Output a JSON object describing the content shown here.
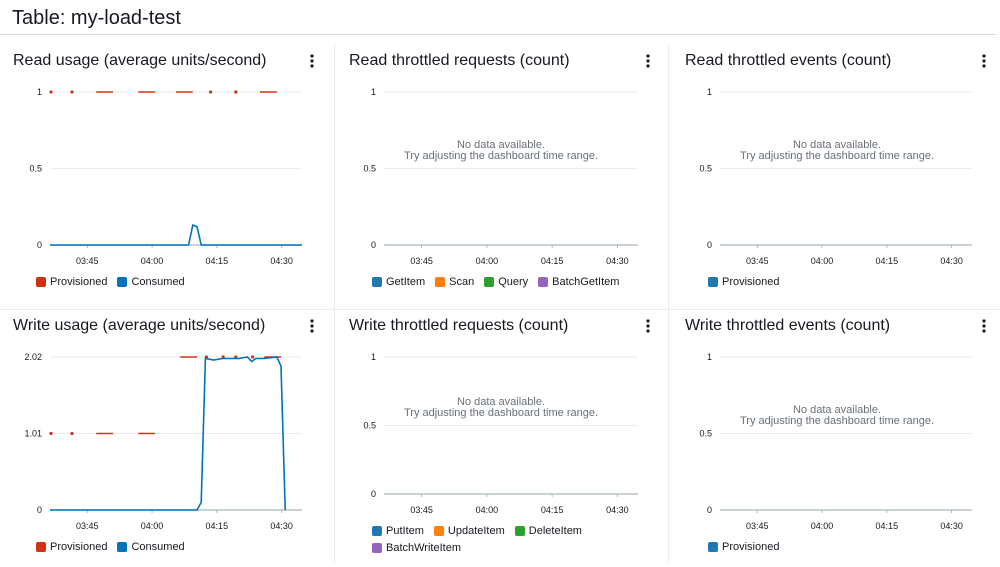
{
  "page": {
    "title": "Table: my-load-test"
  },
  "nodata": {
    "line1": "No data available.",
    "line2": "Try adjusting the dashboard time range."
  },
  "colors": {
    "provisioned": "#d13212",
    "consumed": "#0073bb",
    "getitem": "#1f77b4",
    "scan": "#ff7f0e",
    "query": "#2ca02c",
    "batch": "#9467bd"
  },
  "panels": [
    {
      "title": "Read usage (average units/second)",
      "menu_icon": "more-vertical-icon"
    },
    {
      "title": "Read throttled requests (count)",
      "menu_icon": "more-vertical-icon"
    },
    {
      "title": "Read throttled events (count)",
      "menu_icon": "more-vertical-icon"
    },
    {
      "title": "Write usage (average units/second)",
      "menu_icon": "more-vertical-icon"
    },
    {
      "title": "Write throttled requests (count)",
      "menu_icon": "more-vertical-icon"
    },
    {
      "title": "Write throttled events (count)",
      "menu_icon": "more-vertical-icon"
    }
  ],
  "legends": [
    [
      {
        "label": "Provisioned",
        "color": "#d13212"
      },
      {
        "label": "Consumed",
        "color": "#0073bb"
      }
    ],
    [
      {
        "label": "GetItem",
        "color": "#1f77b4"
      },
      {
        "label": "Scan",
        "color": "#ff7f0e"
      },
      {
        "label": "Query",
        "color": "#2ca02c"
      },
      {
        "label": "BatchGetItem",
        "color": "#9467bd"
      }
    ],
    [
      {
        "label": "Provisioned",
        "color": "#1f77b4"
      }
    ],
    [
      {
        "label": "Provisioned",
        "color": "#d13212"
      },
      {
        "label": "Consumed",
        "color": "#0073bb"
      }
    ],
    [
      {
        "label": "PutItem",
        "color": "#1f77b4"
      },
      {
        "label": "UpdateItem",
        "color": "#ff7f0e"
      },
      {
        "label": "DeleteItem",
        "color": "#2ca02c"
      },
      {
        "label": "BatchWriteItem",
        "color": "#9467bd"
      }
    ],
    [
      {
        "label": "Provisioned",
        "color": "#1f77b4"
      }
    ]
  ],
  "chart_data": [
    {
      "type": "line",
      "title": "Read usage (average units/second)",
      "x_ticks": [
        "03:45",
        "04:00",
        "04:15",
        "04:30"
      ],
      "y_ticks": [
        "0",
        "0.5",
        "1"
      ],
      "ylim": [
        0,
        1
      ],
      "xlim_minutes": [
        33,
        93
      ],
      "series": [
        {
          "name": "Provisioned",
          "style": "dashed",
          "segments": [
            [
              [
                33,
                1
              ],
              [
                34,
                1
              ]
            ],
            [
              [
                38,
                1
              ],
              [
                39,
                1
              ]
            ],
            [
              [
                44,
                1
              ],
              [
                48,
                1
              ]
            ],
            [
              [
                54,
                1
              ],
              [
                58,
                1
              ]
            ],
            [
              [
                63,
                1
              ],
              [
                67,
                1
              ]
            ],
            [
              [
                71,
                1
              ],
              [
                72,
                1
              ]
            ],
            [
              [
                77,
                1
              ],
              [
                78,
                1
              ]
            ],
            [
              [
                83,
                1
              ],
              [
                87,
                1
              ]
            ]
          ]
        },
        {
          "name": "Consumed",
          "style": "solid",
          "points": [
            [
              33,
              0
            ],
            [
              66,
              0
            ],
            [
              67,
              0.13
            ],
            [
              68,
              0.12
            ],
            [
              69,
              0
            ],
            [
              93,
              0
            ]
          ]
        }
      ]
    },
    {
      "type": "line",
      "title": "Read throttled requests (count)",
      "x_ticks": [
        "03:45",
        "04:00",
        "04:15",
        "04:30"
      ],
      "y_ticks": [
        "0",
        "0.5",
        "1"
      ],
      "ylim": [
        0,
        1
      ],
      "series": [],
      "empty": true
    },
    {
      "type": "line",
      "title": "Read throttled events (count)",
      "x_ticks": [
        "03:45",
        "04:00",
        "04:15",
        "04:30"
      ],
      "y_ticks": [
        "0",
        "0.5",
        "1"
      ],
      "ylim": [
        0,
        1
      ],
      "series": [],
      "empty": true
    },
    {
      "type": "line",
      "title": "Write usage (average units/second)",
      "x_ticks": [
        "03:45",
        "04:00",
        "04:15",
        "04:30"
      ],
      "y_ticks": [
        "0",
        "1.01",
        "2.02"
      ],
      "ylim": [
        0,
        2.02
      ],
      "xlim_minutes": [
        33,
        93
      ],
      "series": [
        {
          "name": "Provisioned",
          "style": "dashed",
          "segments": [
            [
              [
                33,
                1.01
              ],
              [
                34,
                1.01
              ]
            ],
            [
              [
                38,
                1.01
              ],
              [
                39,
                1.01
              ]
            ],
            [
              [
                44,
                1.01
              ],
              [
                48,
                1.01
              ]
            ],
            [
              [
                54,
                1.01
              ],
              [
                58,
                1.01
              ]
            ],
            [
              [
                64,
                2.02
              ],
              [
                68,
                2.02
              ]
            ],
            [
              [
                70,
                2.02
              ],
              [
                71,
                2.02
              ]
            ],
            [
              [
                74,
                2.02
              ],
              [
                75,
                2.02
              ]
            ],
            [
              [
                77,
                2.02
              ],
              [
                78,
                2.02
              ]
            ],
            [
              [
                81,
                2.02
              ],
              [
                82,
                2.02
              ]
            ],
            [
              [
                84,
                2.02
              ],
              [
                88,
                2.02
              ]
            ]
          ]
        },
        {
          "name": "Consumed",
          "style": "solid",
          "points": [
            [
              33,
              0
            ],
            [
              68,
              0
            ],
            [
              69,
              0.1
            ],
            [
              70,
              2.0
            ],
            [
              72,
              1.98
            ],
            [
              74,
              2.0
            ],
            [
              78,
              2.0
            ],
            [
              80,
              2.02
            ],
            [
              81,
              1.96
            ],
            [
              82,
              2.0
            ],
            [
              84,
              2.0
            ],
            [
              87,
              2.02
            ],
            [
              88,
              1.9
            ],
            [
              89,
              0
            ]
          ]
        }
      ]
    },
    {
      "type": "line",
      "title": "Write throttled requests (count)",
      "x_ticks": [
        "03:45",
        "04:00",
        "04:15",
        "04:30"
      ],
      "y_ticks": [
        "0",
        "0.5",
        "1"
      ],
      "ylim": [
        0,
        1
      ],
      "series": [],
      "empty": true
    },
    {
      "type": "line",
      "title": "Write throttled events (count)",
      "x_ticks": [
        "03:45",
        "04:00",
        "04:15",
        "04:30"
      ],
      "y_ticks": [
        "0",
        "0.5",
        "1"
      ],
      "ylim": [
        0,
        1
      ],
      "series": [],
      "empty": true
    }
  ]
}
